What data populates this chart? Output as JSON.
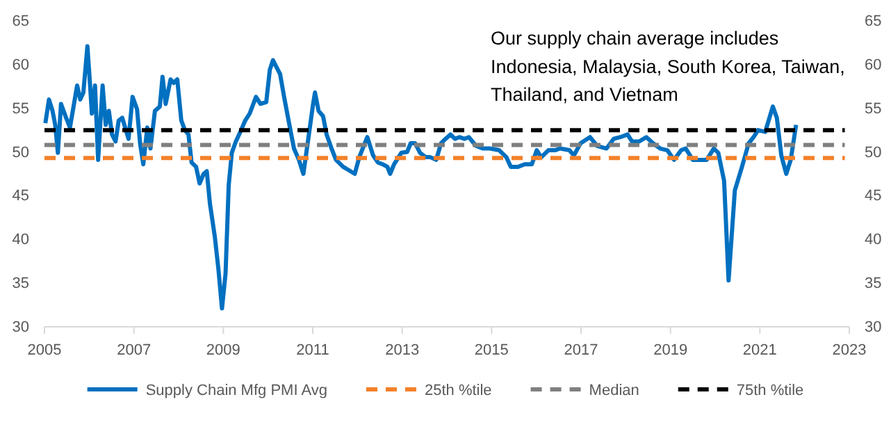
{
  "chart_data": {
    "type": "line",
    "annotations": [
      "Our supply chain average includes Indonesia, Malaysia, South Korea, Taiwan, Thailand, and Vietnam"
    ],
    "xlim": [
      2005,
      2023
    ],
    "xticks": [
      2005,
      2007,
      2009,
      2011,
      2013,
      2015,
      2017,
      2019,
      2021,
      2023
    ],
    "ylim": [
      30,
      65
    ],
    "yticks": [
      30,
      35,
      40,
      45,
      50,
      55,
      60,
      65
    ],
    "y2lim": [
      30,
      65
    ],
    "y2ticks": [
      30,
      35,
      40,
      45,
      50,
      55,
      60,
      65
    ],
    "legend": "bottom",
    "grid": false,
    "marker": "none",
    "series": [
      {
        "name": "Supply Chain Mfg PMI Avg",
        "color": "#0070c0",
        "line_style": "solid",
        "x": [
          2005.02,
          2005.1,
          2005.18,
          2005.24,
          2005.3,
          2005.37,
          2005.47,
          2005.57,
          2005.66,
          2005.73,
          2005.8,
          2005.87,
          2005.96,
          2006.02,
          2006.06,
          2006.13,
          2006.2,
          2006.3,
          2006.37,
          2006.44,
          2006.51,
          2006.59,
          2006.66,
          2006.74,
          2006.88,
          2006.97,
          2007.07,
          2007.14,
          2007.21,
          2007.3,
          2007.37,
          2007.47,
          2007.58,
          2007.64,
          2007.71,
          2007.82,
          2007.89,
          2007.97,
          2008.06,
          2008.14,
          2008.22,
          2008.29,
          2008.39,
          2008.47,
          2008.56,
          2008.63,
          2008.7,
          2008.81,
          2008.89,
          2008.97,
          2009.05,
          2009.12,
          2009.19,
          2009.28,
          2009.38,
          2009.49,
          2009.59,
          2009.73,
          2009.83,
          2009.96,
          2010.04,
          2010.11,
          2010.27,
          2010.37,
          2010.5,
          2010.58,
          2010.69,
          2010.79,
          2010.9,
          2011.0,
          2011.05,
          2011.13,
          2011.23,
          2011.31,
          2011.42,
          2011.52,
          2011.68,
          2011.78,
          2011.94,
          2012.04,
          2012.22,
          2012.35,
          2012.46,
          2012.56,
          2012.67,
          2012.73,
          2012.82,
          2012.98,
          2013.11,
          2013.19,
          2013.29,
          2013.4,
          2013.53,
          2013.63,
          2013.76,
          2013.87,
          2013.97,
          2014.08,
          2014.18,
          2014.28,
          2014.39,
          2014.49,
          2014.65,
          2014.8,
          2014.96,
          2015.17,
          2015.33,
          2015.43,
          2015.59,
          2015.74,
          2015.9,
          2016.01,
          2016.11,
          2016.27,
          2016.42,
          2016.53,
          2016.74,
          2016.84,
          2016.99,
          2017.2,
          2017.36,
          2017.57,
          2017.73,
          2017.88,
          2018.04,
          2018.14,
          2018.3,
          2018.46,
          2018.61,
          2018.77,
          2018.93,
          2019.08,
          2019.24,
          2019.34,
          2019.5,
          2019.66,
          2019.81,
          2019.97,
          2020.07,
          2020.2,
          2020.3,
          2020.44,
          2020.6,
          2020.75,
          2020.86,
          2020.96,
          2021.12,
          2021.29,
          2021.38,
          2021.48,
          2021.59,
          2021.69,
          2021.81
        ],
        "values": [
          53.3,
          56.0,
          54.7,
          53.1,
          49.9,
          55.5,
          54.1,
          52.8,
          55.5,
          57.6,
          56.0,
          56.8,
          62.1,
          57.6,
          54.4,
          57.6,
          49.1,
          57.6,
          53.1,
          54.7,
          52.0,
          51.2,
          53.6,
          53.9,
          51.5,
          56.3,
          54.9,
          50.9,
          48.6,
          52.8,
          50.4,
          54.7,
          55.2,
          58.6,
          55.5,
          58.3,
          57.9,
          58.3,
          53.6,
          52.5,
          52.0,
          48.8,
          48.3,
          46.4,
          47.5,
          47.8,
          44.1,
          40.3,
          36.6,
          32.1,
          36.1,
          46.2,
          49.9,
          51.2,
          52.3,
          53.6,
          54.4,
          56.3,
          55.5,
          55.7,
          59.4,
          60.5,
          58.9,
          56.0,
          52.5,
          50.4,
          49.1,
          47.5,
          51.5,
          55.2,
          56.8,
          54.7,
          54.1,
          52.0,
          50.4,
          49.1,
          48.3,
          48.0,
          47.5,
          49.4,
          51.7,
          49.6,
          48.8,
          48.6,
          48.3,
          47.5,
          48.6,
          49.9,
          50.0,
          51.0,
          51.0,
          49.9,
          49.4,
          49.4,
          49.1,
          51.0,
          51.5,
          52.0,
          51.5,
          51.7,
          51.5,
          51.7,
          50.7,
          50.4,
          50.4,
          50.2,
          49.4,
          48.3,
          48.3,
          48.6,
          48.6,
          50.2,
          49.4,
          50.2,
          50.2,
          50.4,
          50.2,
          49.6,
          51.0,
          51.7,
          50.7,
          50.4,
          51.5,
          51.7,
          52.0,
          51.2,
          51.2,
          51.7,
          51.0,
          50.4,
          50.2,
          49.1,
          50.2,
          50.4,
          49.1,
          49.1,
          49.1,
          50.4,
          49.9,
          46.7,
          35.3,
          45.6,
          48.3,
          51.0,
          51.7,
          52.5,
          52.3,
          55.2,
          53.9,
          49.6,
          47.5,
          49.1,
          53.1
        ]
      },
      {
        "name": "25th %tile",
        "color": "#f4812a",
        "line_style": "dashed",
        "x": [
          2005,
          2022.9
        ],
        "values": [
          49.3,
          49.3
        ]
      },
      {
        "name": "Median",
        "color": "#7f7f7f",
        "line_style": "dashed",
        "x": [
          2005,
          2022.9
        ],
        "values": [
          50.8,
          50.8
        ]
      },
      {
        "name": "75th %tile",
        "color": "#000000",
        "line_style": "dashed",
        "x": [
          2005,
          2022.9
        ],
        "values": [
          52.5,
          52.5
        ]
      }
    ]
  }
}
